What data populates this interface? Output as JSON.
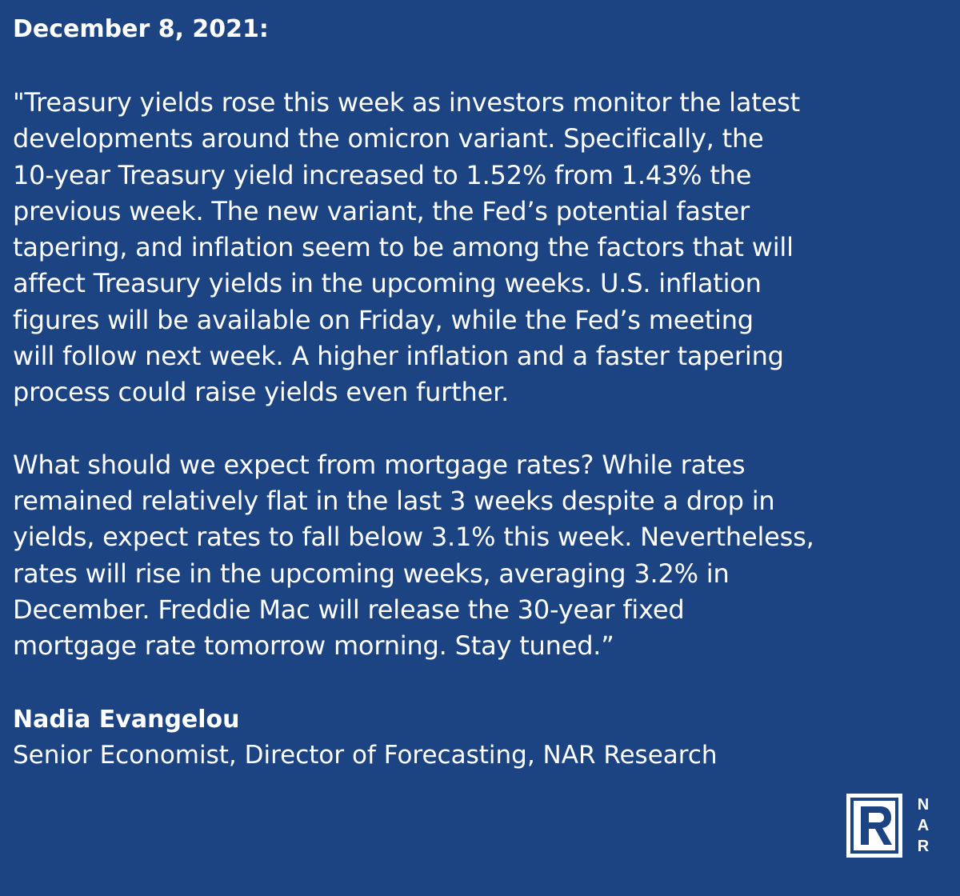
{
  "header": {
    "date": "December 8, 2021:"
  },
  "quote": {
    "paragraph1": "\"Treasury yields rose this week as investors monitor the latest\ndevelopments around the omicron variant. Specifically, the\n10-year Treasury yield increased to 1.52% from 1.43% the\nprevious week. The new variant, the Fed’s potential faster\ntapering, and inflation seem to be among the factors that will\naffect Treasury yields in the upcoming weeks. U.S. inflation\nfigures will be available on Friday, while the Fed’s meeting\nwill follow next week. A higher inflation and a faster tapering\nprocess could raise yields even further.",
    "paragraph2": "What should we expect from mortgage rates? While rates\nremained relatively flat in the last 3 weeks despite a drop in\nyields, expect rates to fall below 3.1% this week. Nevertheless,\nrates will rise in the upcoming weeks, averaging 3.2% in\nDecember. Freddie Mac will release the 30-year fixed\nmortgage rate tomorrow morning. Stay tuned.”"
  },
  "author": {
    "name": "Nadia Evangelou",
    "title": "Senior Economist, Director of Forecasting, NAR Research"
  },
  "logo": {
    "mark": "R",
    "letters": [
      "N",
      "A",
      "R"
    ],
    "icon": "nar-logo-icon"
  },
  "colors": {
    "background": "#1c4482",
    "text": "#ffffff"
  }
}
